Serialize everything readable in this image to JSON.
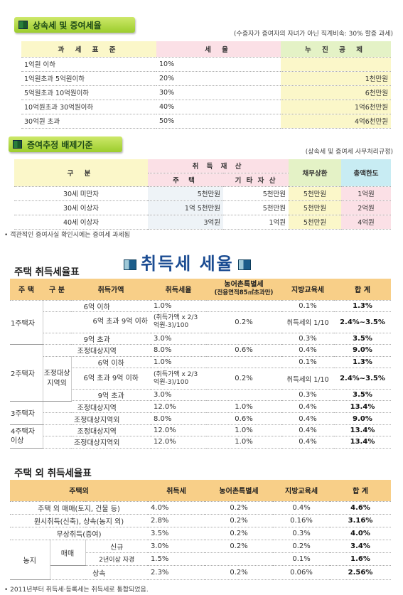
{
  "section1": {
    "title": "상속세 및 증여세율",
    "note": "(수증자가 증여자의 자녀가 아닌 직계비속: 30% 할증 과세)",
    "headers": [
      "과 세 표 준",
      "세 율",
      "누 진 공 제"
    ],
    "rows": [
      [
        "1억원 이하",
        "10%",
        ""
      ],
      [
        "1억원초과 5억원이하",
        "20%",
        "1천만원"
      ],
      [
        "5억원초과 10억원이하",
        "30%",
        "6천만원"
      ],
      [
        "10억원초과 30억원이하",
        "40%",
        "1억6천만원"
      ],
      [
        "30억원 초과",
        "50%",
        "4억6천만원"
      ]
    ]
  },
  "section2": {
    "title": "증여추정 배제기준",
    "note": "(상속세 및 증여세 사무처리규정)",
    "h_gubun": "구 분",
    "h_asset": "취 득 재 산",
    "h_house": "주 택",
    "h_other": "기 타 자 산",
    "h_debt": "채무상환",
    "h_limit": "총액한도",
    "rows": [
      [
        "30세 미만자",
        "5천만원",
        "5천만원",
        "5천만원",
        "1억원"
      ],
      [
        "30세 이상자",
        "1억 5천만원",
        "5천만원",
        "5천만원",
        "2억원"
      ],
      [
        "40세 이상자",
        "3억원",
        "1억원",
        "5천만원",
        "4억원"
      ]
    ],
    "footnote": "• 객관적인 증여사실 확인시에는 증여세 과세됨"
  },
  "banner": "취득세 세율",
  "section3": {
    "title": "주택 취득세율표",
    "headers": {
      "house": "주 택",
      "gubun": "구 분",
      "price": "취득가액",
      "rate": "취득세율",
      "farm": "농어촌특별세",
      "farm_sub": "(전용면적85㎡초과만)",
      "edu": "지방교육세",
      "total": "합 계"
    },
    "g1": "1주택자",
    "g2": "2주택자",
    "g2sub": "조정대상 지역외",
    "g3": "3주택자",
    "g4": "4주택자 이상",
    "r1": {
      "price": "6억 이하",
      "rate": "1.0%",
      "edu": "0.1%",
      "total": "1.3%"
    },
    "r2": {
      "price": "6억 초과 9억 이하",
      "rate": "(취득가액 x 2/3억원-3)/100",
      "farm": "0.2%",
      "edu": "취득세의 1/10",
      "total": "2.4%~3.5%"
    },
    "r3": {
      "price": "9억 초과",
      "rate": "3.0%",
      "edu": "0.3%",
      "total": "3.5%"
    },
    "r4": {
      "gubun": "조정대상지역",
      "rate": "8.0%",
      "farm": "0.6%",
      "edu": "0.4%",
      "total": "9.0%"
    },
    "r5": {
      "price": "6억 이하",
      "rate": "1.0%",
      "edu": "0.1%",
      "total": "1.3%"
    },
    "r6": {
      "price": "6억 초과 9억 이하",
      "rate": "(취득가액 x 2/3억원-3)/100",
      "farm": "0.2%",
      "edu": "취득세의 1/10",
      "total": "2.4%~3.5%"
    },
    "r7": {
      "price": "9억 초과",
      "rate": "3.0%",
      "edu": "0.3%",
      "total": "3.5%"
    },
    "r8": {
      "gubun": "조정대상지역",
      "rate": "12.0%",
      "farm": "1.0%",
      "edu": "0.4%",
      "total": "13.4%"
    },
    "r9": {
      "gubun": "조정대상지역외",
      "rate": "8.0%",
      "farm": "0.6%",
      "edu": "0.4%",
      "total": "9.0%"
    },
    "r10": {
      "gubun": "조정대상지역",
      "rate": "12.0%",
      "farm": "1.0%",
      "edu": "0.4%",
      "total": "13.4%"
    },
    "r11": {
      "gubun": "조정대상지역외",
      "rate": "12.0%",
      "farm": "1.0%",
      "edu": "0.4%",
      "total": "13.4%"
    }
  },
  "section4": {
    "title": "주택 외 취득세율표",
    "headers": [
      "주택외",
      "취득세",
      "농어촌특별세",
      "지방교육세",
      "합 계"
    ],
    "rows": [
      [
        "주택 외 매매(토지, 건물 등)",
        "4.0%",
        "0.2%",
        "0.4%",
        "4.6%"
      ],
      [
        "원시취득(신축), 상속(농지 외)",
        "2.8%",
        "0.2%",
        "0.16%",
        "3.16%"
      ],
      [
        "무상취득(증여)",
        "3.5%",
        "0.2%",
        "0.3%",
        "4.0%"
      ]
    ],
    "farm": "농지",
    "sale": "매매",
    "new": "신규",
    "new_row": [
      "3.0%",
      "0.2%",
      "0.2%",
      "3.4%"
    ],
    "old": "2년이상 자경",
    "old_row": [
      "1.5%",
      "",
      "0.1%",
      "1.6%"
    ],
    "inherit": "상속",
    "inherit_row": [
      "2.3%",
      "0.2%",
      "0.06%",
      "2.56%"
    ],
    "footnote": "• 2011년부터 취득세·등록세는 취득세로 통합되었음."
  }
}
